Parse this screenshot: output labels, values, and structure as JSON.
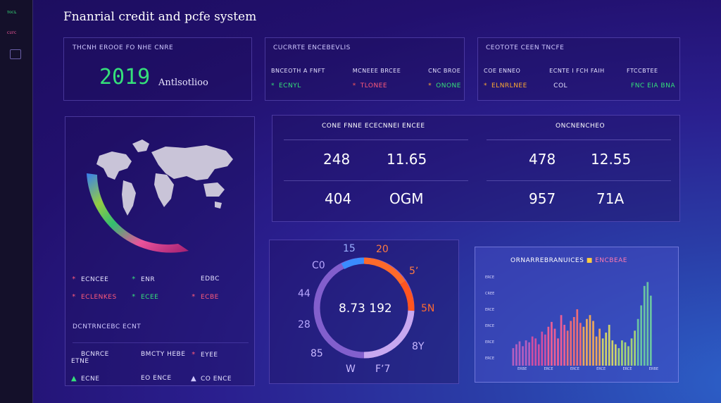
{
  "sidebar": {
    "items": [
      {
        "label": "ᴛᴏᴄʟ",
        "color": "#35e07a"
      },
      {
        "label": "ᴄᴜᴦᴄ",
        "color": "#ff5aa0"
      }
    ]
  },
  "header": {
    "title": "Fnanrial credit and pcfe system"
  },
  "panel_year": {
    "label": "THCNH EROOE FO NHE CNRE",
    "year": "2019",
    "subtitle": "Antlsotlioo"
  },
  "panel_metrics_a": {
    "label": "CUCRRTE ENCEBEVLIS",
    "cols": [
      {
        "head": "BNCEOTH A FNFT",
        "icon": "*",
        "icon_color": "#35e07a",
        "value": "ECNYL",
        "value_color": "#35e07a"
      },
      {
        "head": "MCNEEE BRCEE",
        "icon": "*",
        "icon_color": "#ff5a5a",
        "value": "TLONEE",
        "value_color": "#ff5a7a"
      },
      {
        "head": "CNC BROE",
        "icon": "*",
        "icon_color": "#ffaa30",
        "value": "ONONE",
        "value_color": "#35e07a"
      }
    ]
  },
  "panel_metrics_b": {
    "label": "CEOTOTE CEEN TNCFE",
    "cols": [
      {
        "head": "COE ENNEO",
        "icon": "*",
        "icon_color": "#ffaa30",
        "value": "ELNRLNEE",
        "value_color": "#ffaa30"
      },
      {
        "head": "ECNTE I FCH FAIH",
        "icon": "",
        "icon_color": "#e6e3ff",
        "value": "COL",
        "value_color": "#e6e3ff"
      },
      {
        "head": "FTCCBTEE",
        "icon": "",
        "icon_color": "#e6e3ff",
        "value": "FNC EIA BNA",
        "value_color": "#35e07a"
      }
    ]
  },
  "panel_world": {
    "legend_rows": [
      [
        {
          "icon": "*",
          "color": "#ff5a7a",
          "text": "ECNCEE"
        },
        {
          "icon": "*",
          "color": "#35e07a",
          "text": "ENR"
        },
        {
          "icon": "",
          "color": "#e6e3ff",
          "text": "EDBC"
        }
      ],
      [
        {
          "icon": "*",
          "color": "#ff5a7a",
          "text": "ECLENKES"
        },
        {
          "icon": "*",
          "color": "#35e07a",
          "text": "ECEE"
        },
        {
          "icon": "*",
          "color": "#ff5a7a",
          "text": "ECBE"
        }
      ]
    ],
    "footer_label": "DCNTRNCEBC ECNT",
    "footer_rows": [
      [
        {
          "icon": "",
          "color": "#e6e3ff",
          "text": "BCNRCE ETNE"
        },
        {
          "icon": "",
          "color": "#e6e3ff",
          "text": "BMCTY HEBE"
        },
        {
          "icon": "*",
          "color": "#ff5a7a",
          "text": "EYEE"
        }
      ],
      [
        {
          "icon": "▲",
          "color": "#35e07a",
          "text": "ECNE"
        },
        {
          "icon": "",
          "color": "#e6e3ff",
          "text": "EO ENCE"
        },
        {
          "icon": "▲",
          "color": "#cfc8ff",
          "text": "CO ENCE"
        }
      ]
    ]
  },
  "panel_stats": {
    "left_label": "CONE FNNE ECECNNEI ENCEE",
    "right_label": "ONCNENCHEO",
    "left_values": [
      "248",
      "11.65",
      "404",
      "OGM"
    ],
    "right_values": [
      "478",
      "12.55",
      "957",
      "71A"
    ]
  },
  "panel_donut": {
    "center_value": "8.73 192",
    "labels": [
      "15",
      "20",
      "C0",
      "5ʼ",
      "44",
      "5N",
      "28",
      "8Y",
      "85",
      "W",
      "Fʼ7"
    ],
    "colors": {
      "blue": "#3a8cff",
      "orange": "#ff6a2a",
      "lavender": "#b08ce8",
      "violet": "#9a6fe0"
    }
  },
  "chart_data": {
    "type": "bar",
    "title": "ORNARREBRANUICES",
    "legend": [
      {
        "name": "ENCBEAE",
        "color": "#ff5a9a"
      }
    ],
    "ylabels": [
      "ERCE",
      "CREE",
      "ERCE",
      "ERCE",
      "ERCE",
      "ERCE"
    ],
    "xlabels": [
      "ERBE",
      "ERCE",
      "ERCE",
      "ERCE",
      "ERCE",
      "ERBE"
    ],
    "values": [
      18,
      22,
      25,
      20,
      26,
      24,
      30,
      28,
      22,
      35,
      32,
      40,
      45,
      38,
      28,
      52,
      42,
      36,
      46,
      50,
      58,
      44,
      40,
      48,
      52,
      46,
      30,
      38,
      28,
      34,
      42,
      26,
      22,
      18,
      26,
      24,
      20,
      28,
      36,
      48,
      62,
      82,
      86,
      72
    ],
    "colors": [
      "#c060c0",
      "#e050a0",
      "#ff6090",
      "#ff7070",
      "#ffb050",
      "#e0e060",
      "#b0e070",
      "#70d0a0"
    ],
    "ylim": [
      0,
      100
    ]
  }
}
